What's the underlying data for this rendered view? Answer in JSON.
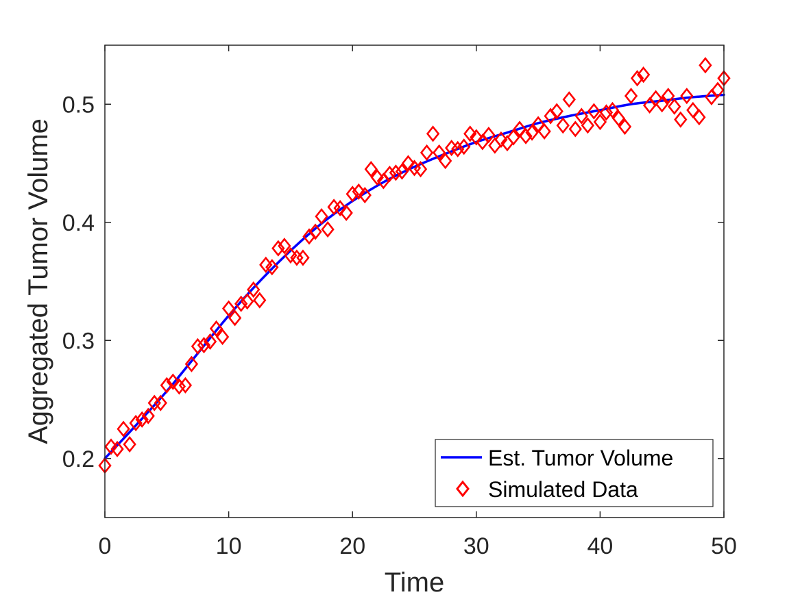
{
  "chart_data": {
    "type": "line",
    "xlabel": "Time",
    "ylabel": "Aggregated Tumor Volume",
    "xlim": [
      0,
      50
    ],
    "ylim": [
      0.15,
      0.55
    ],
    "x_ticks": [
      "0",
      "10",
      "20",
      "30",
      "40",
      "50"
    ],
    "y_ticks": [
      "0.2",
      "0.3",
      "0.4",
      "0.5"
    ],
    "grid": false,
    "legend_position": "bottom-right",
    "series": [
      {
        "name": "Est. Tumor Volume",
        "type": "line",
        "color": "#0000ff",
        "x": [
          0,
          2.5,
          5,
          7.5,
          10,
          12.5,
          15,
          17.5,
          20,
          22.5,
          25,
          27.5,
          30,
          32.5,
          35,
          37.5,
          40,
          42.5,
          45,
          47.5,
          50
        ],
        "y": [
          0.2,
          0.228,
          0.257,
          0.289,
          0.321,
          0.35,
          0.376,
          0.399,
          0.418,
          0.434,
          0.447,
          0.458,
          0.468,
          0.476,
          0.484,
          0.49,
          0.495,
          0.5,
          0.503,
          0.506,
          0.508
        ]
      },
      {
        "name": "Simulated Data",
        "type": "scatter",
        "marker": "diamond",
        "color": "#ff0000",
        "x": [
          0,
          0.5,
          1,
          1.5,
          2,
          2.5,
          3,
          3.5,
          4,
          4.5,
          5,
          5.5,
          6,
          6.5,
          7,
          7.5,
          8,
          8.5,
          9,
          9.5,
          10,
          10.5,
          11,
          11.5,
          12,
          12.5,
          13,
          13.5,
          14,
          14.5,
          15,
          15.5,
          16,
          16.5,
          17,
          17.5,
          18,
          18.5,
          19,
          19.5,
          20,
          20.5,
          21,
          21.5,
          22,
          22.5,
          23,
          23.5,
          24,
          24.5,
          25,
          25.5,
          26,
          26.5,
          27,
          27.5,
          28,
          28.5,
          29,
          29.5,
          30,
          30.5,
          31,
          31.5,
          32,
          32.5,
          33,
          33.5,
          34,
          34.5,
          35,
          35.5,
          36,
          36.5,
          37,
          37.5,
          38,
          38.5,
          39,
          39.5,
          40,
          40.5,
          41,
          41.5,
          42,
          42.5,
          43,
          43.5,
          44,
          44.5,
          45,
          45.5,
          46,
          46.5,
          47,
          47.5,
          48,
          48.5,
          49,
          49.5,
          50
        ],
        "y": [
          0.194,
          0.21,
          0.208,
          0.225,
          0.212,
          0.23,
          0.233,
          0.236,
          0.247,
          0.247,
          0.262,
          0.265,
          0.261,
          0.262,
          0.28,
          0.295,
          0.296,
          0.299,
          0.31,
          0.303,
          0.327,
          0.319,
          0.331,
          0.333,
          0.343,
          0.334,
          0.364,
          0.362,
          0.378,
          0.38,
          0.372,
          0.37,
          0.37,
          0.388,
          0.392,
          0.405,
          0.394,
          0.413,
          0.412,
          0.408,
          0.424,
          0.426,
          0.423,
          0.445,
          0.438,
          0.435,
          0.441,
          0.442,
          0.443,
          0.45,
          0.446,
          0.445,
          0.459,
          0.475,
          0.459,
          0.452,
          0.463,
          0.462,
          0.464,
          0.475,
          0.472,
          0.468,
          0.474,
          0.465,
          0.47,
          0.467,
          0.472,
          0.479,
          0.473,
          0.476,
          0.483,
          0.477,
          0.49,
          0.494,
          0.482,
          0.504,
          0.479,
          0.49,
          0.482,
          0.494,
          0.485,
          0.493,
          0.495,
          0.488,
          0.481,
          0.507,
          0.522,
          0.525,
          0.499,
          0.505,
          0.5,
          0.507,
          0.498,
          0.487,
          0.507,
          0.495,
          0.489,
          0.533,
          0.506,
          0.512,
          0.522
        ]
      }
    ]
  }
}
